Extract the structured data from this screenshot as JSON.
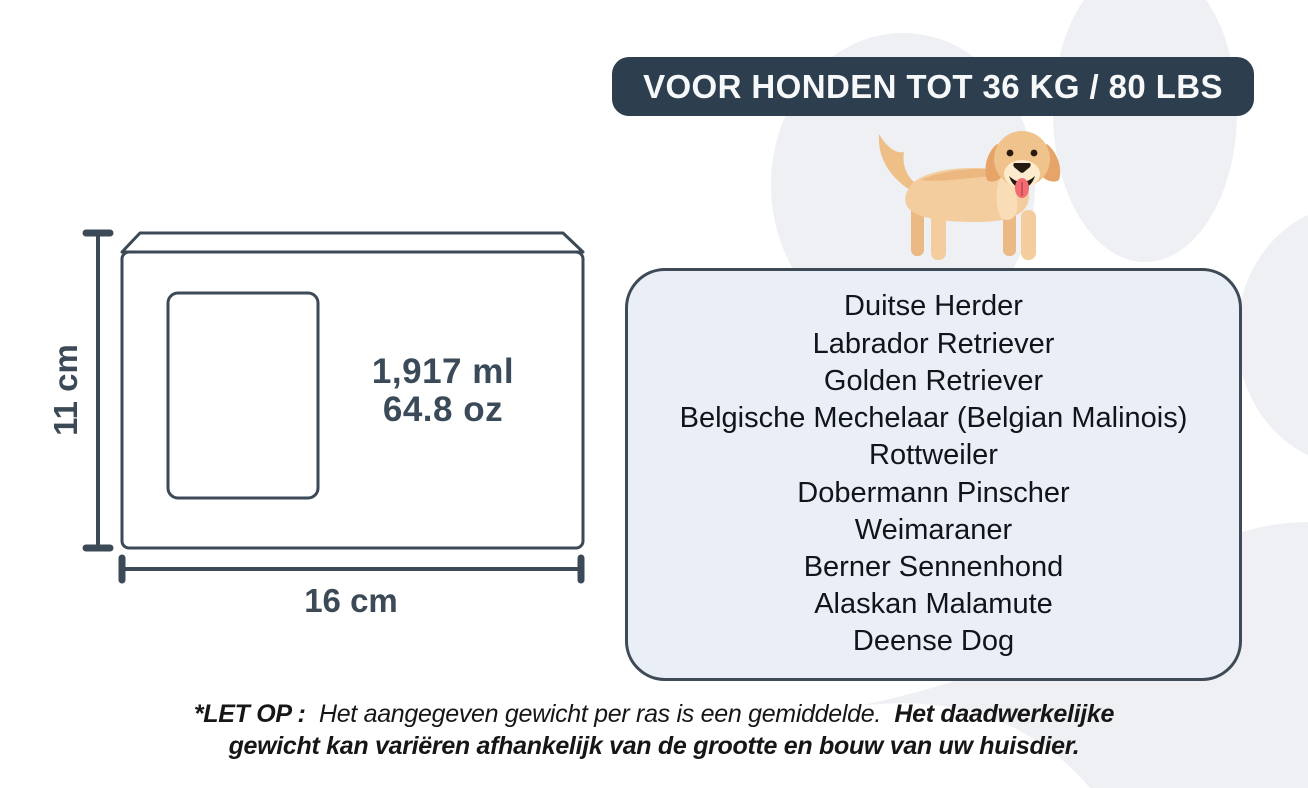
{
  "header": {
    "badge": "VOOR HONDEN TOT 36 KG / 80 LBS"
  },
  "diagram": {
    "height_label": "11 cm",
    "width_label": "16 cm",
    "volume_ml": "1,917 ml",
    "volume_oz": "64.8 oz"
  },
  "breeds": [
    "Duitse Herder",
    "Labrador Retriever",
    "Golden Retriever",
    "Belgische Mechelaar (Belgian Malinois)",
    "Rottweiler",
    "Dobermann Pinscher",
    "Weimaraner",
    "Berner Sennenhond",
    "Alaskan Malamute",
    "Deense Dog"
  ],
  "footnote": {
    "prefix": "*LET OP :",
    "line1_normal": "Het aangegeven gewicht per ras is een gemiddelde.",
    "line1_bold": "Het daadwerkelijke",
    "line2_bold": "gewicht kan variëren afhankelijk van de grootte en bouw van uw huisdier."
  },
  "icons": {
    "dog": "golden-retriever-illustration",
    "paw": "paw-print-watermark"
  },
  "colors": {
    "badge_bg": "#2d3e4e",
    "badge_text": "#f6f8fa",
    "diagram_line": "#3c4a57",
    "panel_bg": "#e9eef7",
    "panel_border": "#3e4a56",
    "breed_text": "#10151a",
    "footnote_text": "#161616",
    "watermark": "#eef0f4",
    "dog_body": "#f3cd9d",
    "dog_ears": "#e7a468",
    "dog_tongue": "#f26c72"
  }
}
